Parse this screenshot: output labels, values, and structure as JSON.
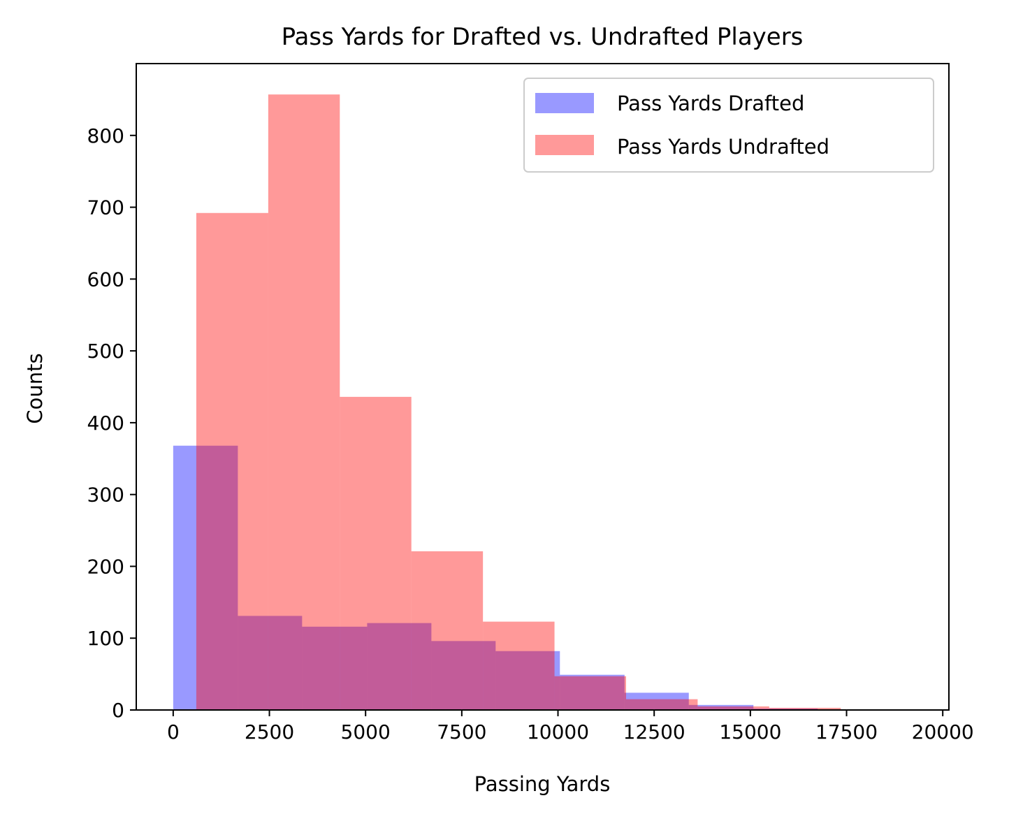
{
  "chart_data": {
    "type": "bar",
    "title": "Pass Yards for Drafted vs. Undrafted Players",
    "xlabel": "Passing Yards",
    "ylabel": "Counts",
    "xlim": [
      -960,
      20160
    ],
    "ylim": [
      0,
      900
    ],
    "xticks": [
      0,
      2500,
      5000,
      7500,
      10000,
      12500,
      15000,
      17500,
      20000
    ],
    "xtick_labels": [
      "0",
      "2500",
      "5000",
      "7500",
      "10000",
      "12500",
      "15000",
      "17500",
      "20000"
    ],
    "yticks": [
      0,
      100,
      200,
      300,
      400,
      500,
      600,
      700,
      800
    ],
    "ytick_labels": [
      "0",
      "100",
      "200",
      "300",
      "400",
      "500",
      "600",
      "700",
      "800"
    ],
    "grid": false,
    "legend_position": "upper right",
    "series": [
      {
        "name": "Pass Yards Drafted",
        "color": "#0000ff",
        "alpha": 0.4,
        "bins": [
          {
            "x0": 0,
            "x1": 1680,
            "count": 368
          },
          {
            "x0": 1680,
            "x1": 3350,
            "count": 131
          },
          {
            "x0": 3350,
            "x1": 5040,
            "count": 116
          },
          {
            "x0": 5040,
            "x1": 6710,
            "count": 121
          },
          {
            "x0": 6710,
            "x1": 8380,
            "count": 96
          },
          {
            "x0": 8380,
            "x1": 10050,
            "count": 82
          },
          {
            "x0": 10050,
            "x1": 11730,
            "count": 49
          },
          {
            "x0": 11730,
            "x1": 13400,
            "count": 24
          },
          {
            "x0": 13400,
            "x1": 15080,
            "count": 7
          },
          {
            "x0": 15080,
            "x1": 16750,
            "count": 2
          }
        ]
      },
      {
        "name": "Pass Yards Undrafted",
        "color": "#ff0000",
        "alpha": 0.4,
        "bins": [
          {
            "x0": 600,
            "x1": 2470,
            "count": 692
          },
          {
            "x0": 2470,
            "x1": 4330,
            "count": 857
          },
          {
            "x0": 4330,
            "x1": 6190,
            "count": 436
          },
          {
            "x0": 6190,
            "x1": 8050,
            "count": 221
          },
          {
            "x0": 8050,
            "x1": 9910,
            "count": 123
          },
          {
            "x0": 9910,
            "x1": 11770,
            "count": 47
          },
          {
            "x0": 11770,
            "x1": 13630,
            "count": 15
          },
          {
            "x0": 13630,
            "x1": 15490,
            "count": 5
          },
          {
            "x0": 15490,
            "x1": 17350,
            "count": 3
          }
        ]
      }
    ]
  }
}
